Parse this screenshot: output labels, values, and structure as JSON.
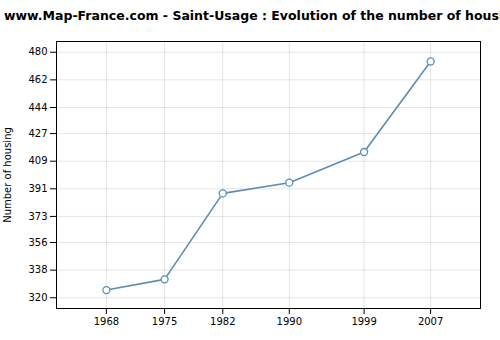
{
  "chart_data": {
    "type": "line",
    "title": "www.Map-France.com - Saint-Usage : Evolution of the number of housing",
    "ylabel": "Number of housing",
    "x": [
      1968,
      1975,
      1982,
      1990,
      1999,
      2007
    ],
    "values": [
      325,
      332,
      388,
      395,
      415,
      474
    ],
    "color": "#5b8db8",
    "marker": "circle",
    "xlim": [
      1962,
      2013
    ],
    "xticks": [
      1968,
      1975,
      1982,
      1990,
      1999,
      2007
    ],
    "ylim": [
      313,
      487
    ],
    "yticks": [
      320,
      338,
      356,
      373,
      391,
      409,
      427,
      444,
      462,
      480
    ],
    "grid": true
  }
}
